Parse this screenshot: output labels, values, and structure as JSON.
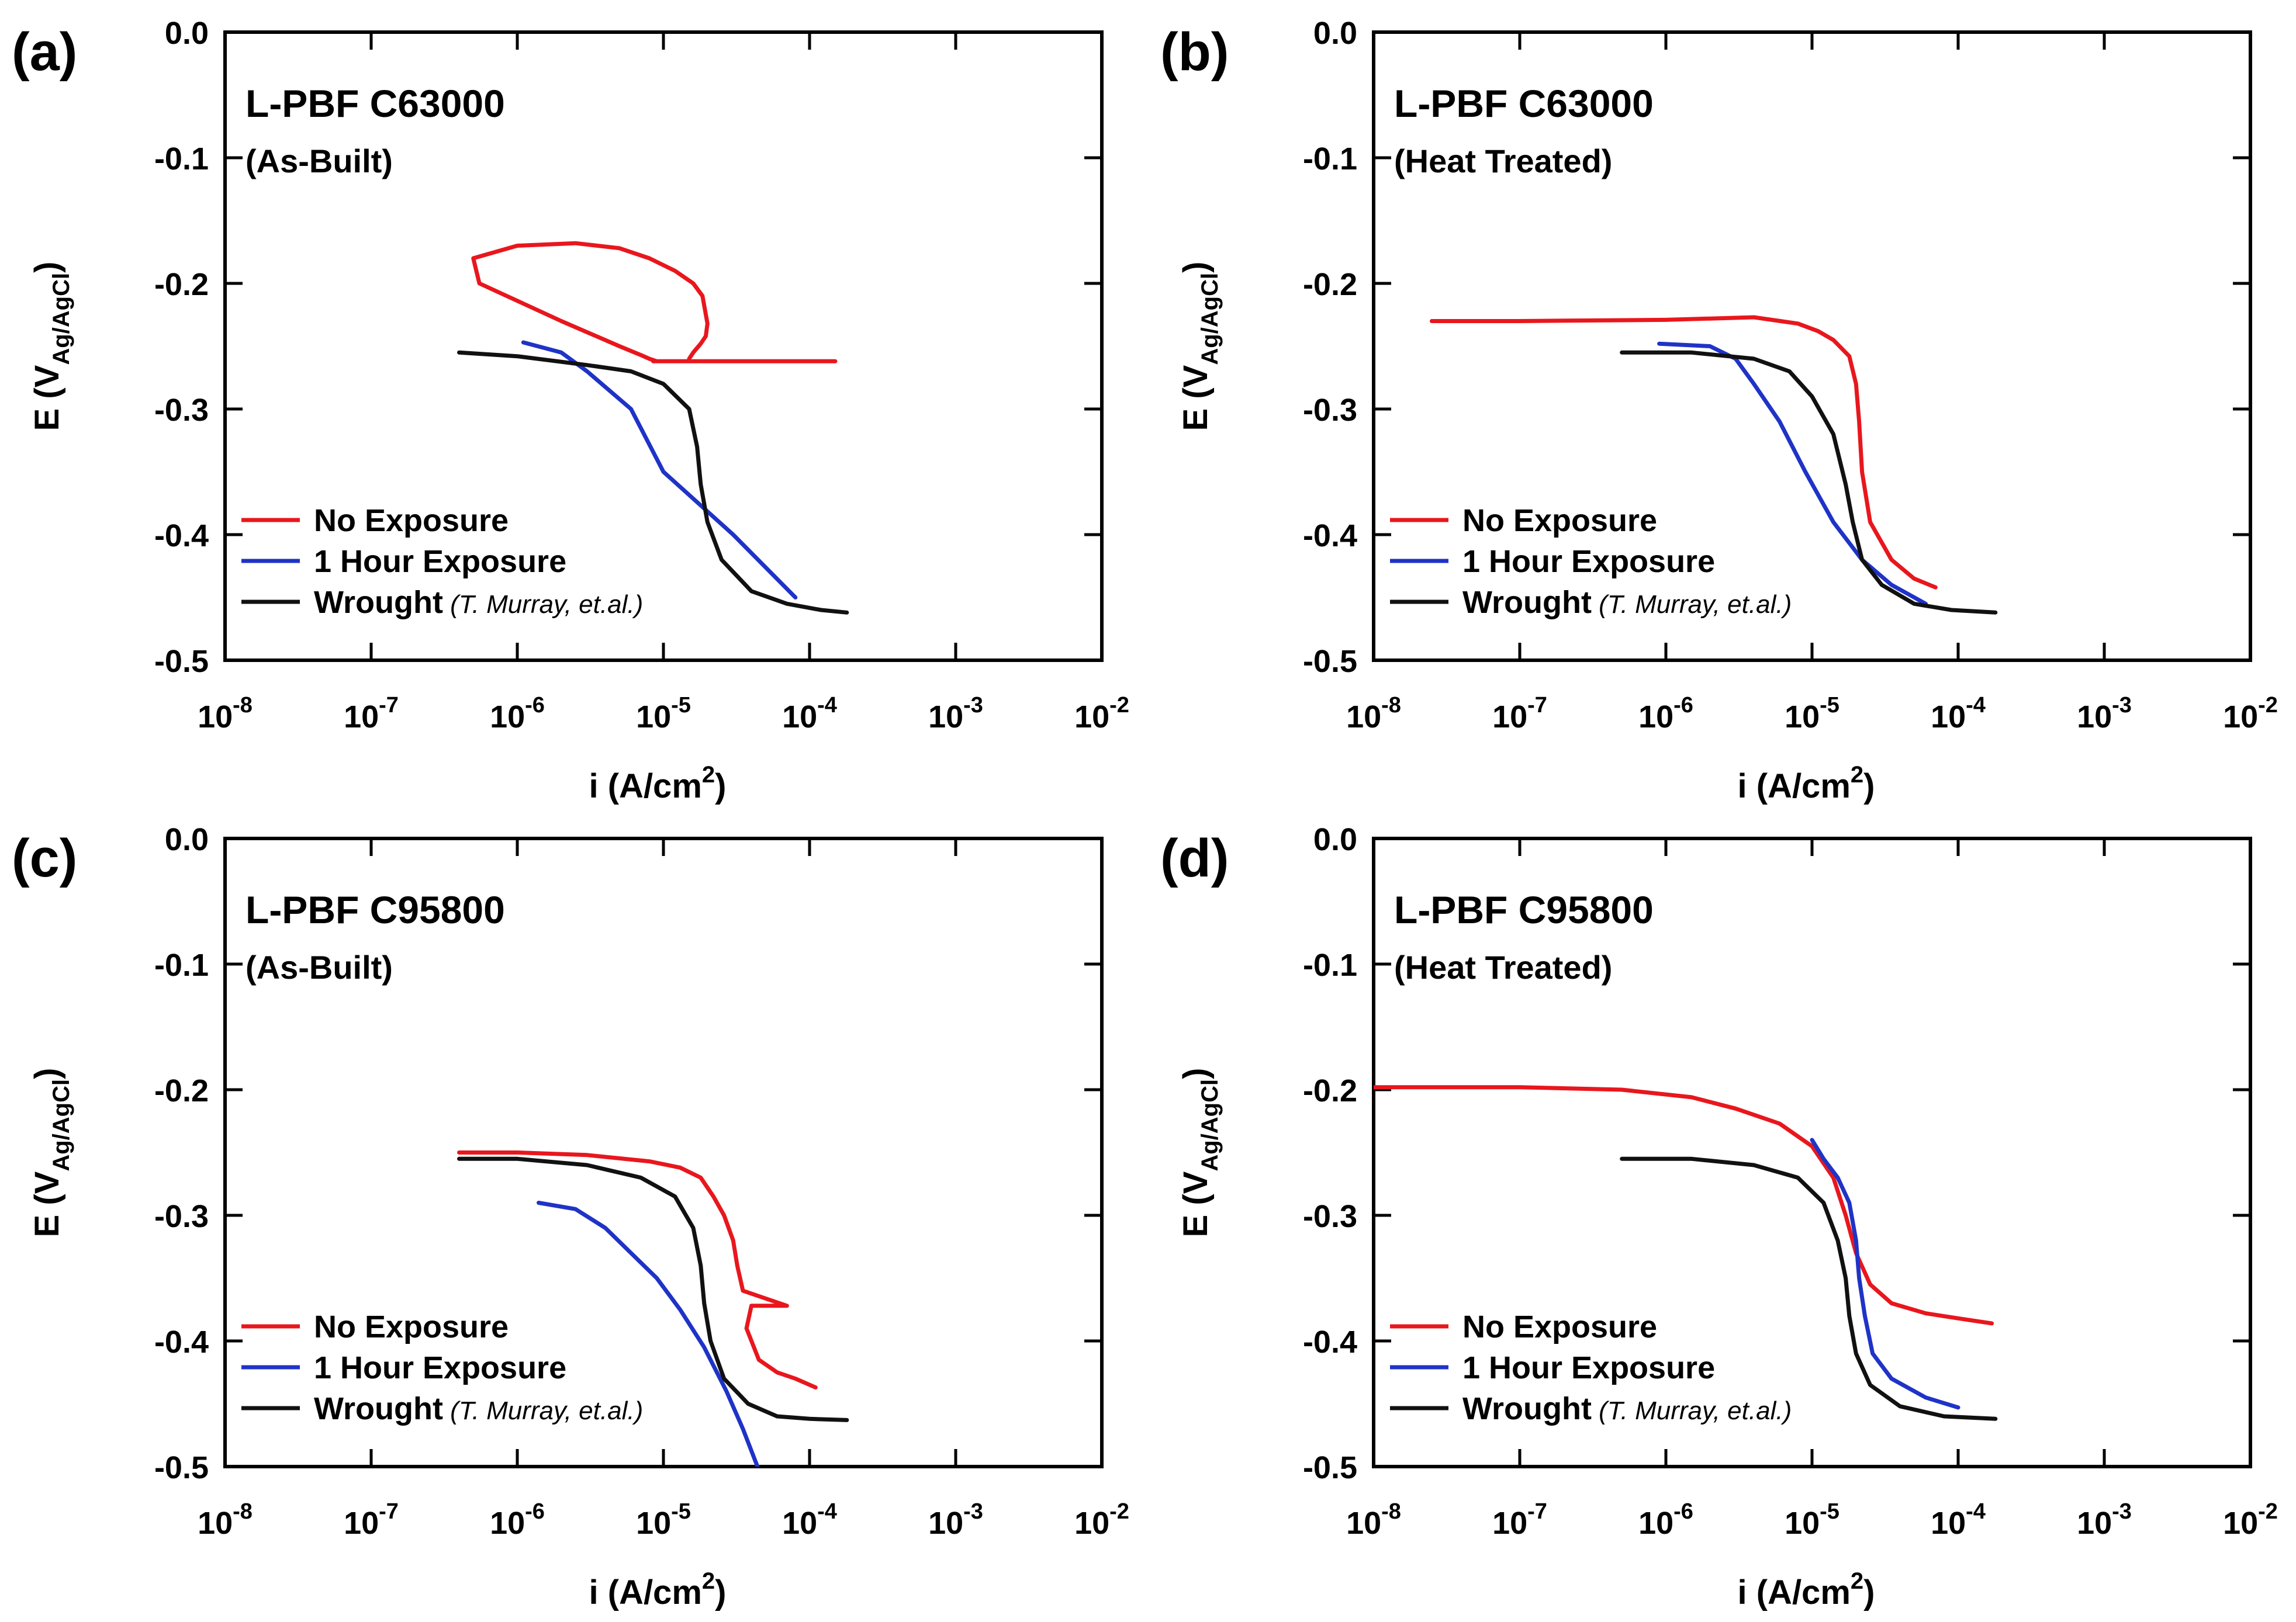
{
  "chart_data": [
    {
      "panel_label": "(a)",
      "type": "line",
      "title": "L-PBF C63000",
      "subtitle": "(As-Built)",
      "xlabel": "i (A/cm",
      "xlabel_sup": "2",
      "xlabel_end": ")",
      "ylabel": "E (V",
      "ylabel_sub": "Ag/AgCl",
      "ylabel_end": ")",
      "xscale": "log",
      "xlim": [
        1e-08,
        0.01
      ],
      "ylim": [
        -0.5,
        0.0
      ],
      "xticks": [
        {
          "base": "10",
          "exp": "-8"
        },
        {
          "base": "10",
          "exp": "-7"
        },
        {
          "base": "10",
          "exp": "-6"
        },
        {
          "base": "10",
          "exp": "-5"
        },
        {
          "base": "10",
          "exp": "-4"
        },
        {
          "base": "10",
          "exp": "-3"
        },
        {
          "base": "10",
          "exp": "-2"
        }
      ],
      "yticks": [
        "0.0",
        "-0.1",
        "-0.2",
        "-0.3",
        "-0.4",
        "-0.5"
      ],
      "grid": false,
      "legend_position": "bottom-left",
      "series": [
        {
          "name": "No Exposure",
          "color": "#e8171d",
          "x": [
            1.5e-05,
            1.6e-05,
            1.8e-05,
            1.95e-05,
            2e-05,
            1.85e-05,
            1.6e-05,
            1.2e-05,
            8e-06,
            5e-06,
            2.5e-06,
            1e-06,
            5e-07,
            5.5e-07,
            2e-06,
            5e-06,
            7e-06,
            8e-06,
            9e-06,
            8.5e-06,
            1.2e-05,
            1.7e-05,
            3e-05,
            6e-05,
            0.00015
          ],
          "y": [
            -0.26,
            -0.255,
            -0.248,
            -0.242,
            -0.232,
            -0.21,
            -0.2,
            -0.19,
            -0.18,
            -0.172,
            -0.168,
            -0.17,
            -0.18,
            -0.2,
            -0.23,
            -0.25,
            -0.257,
            -0.26,
            -0.262,
            -0.262,
            -0.262,
            -0.262,
            -0.262,
            -0.262,
            -0.262
          ]
        },
        {
          "name": "1 Hour Exposure",
          "color": "#1f33c7",
          "x": [
            8e-05,
            3e-05,
            1e-05,
            6e-06,
            3e-06,
            2e-06,
            1.1e-06
          ],
          "y": [
            -0.45,
            -0.4,
            -0.35,
            -0.3,
            -0.27,
            -0.255,
            -0.247
          ]
        },
        {
          "name": "Wrought",
          "color": "#111111",
          "x": [
            4e-07,
            1e-06,
            3e-06,
            6e-06,
            1e-05,
            1.5e-05,
            1.7e-05,
            1.8e-05,
            2e-05,
            2.5e-05,
            4e-05,
            7e-05,
            0.00012,
            0.00018
          ],
          "y": [
            -0.255,
            -0.258,
            -0.265,
            -0.27,
            -0.28,
            -0.3,
            -0.33,
            -0.36,
            -0.39,
            -0.42,
            -0.445,
            -0.455,
            -0.46,
            -0.462
          ]
        }
      ],
      "legend": [
        {
          "label": "No Exposure",
          "note": "",
          "color": "#e8171d"
        },
        {
          "label": "1 Hour Exposure",
          "note": "",
          "color": "#1f33c7"
        },
        {
          "label": "Wrought",
          "note": "(T. Murray, et.al.)",
          "color": "#111111"
        }
      ]
    },
    {
      "panel_label": "(b)",
      "type": "line",
      "title": "L-PBF C63000",
      "subtitle": "(Heat Treated)",
      "xlabel": "i (A/cm",
      "xlabel_sup": "2",
      "xlabel_end": ")",
      "ylabel": "E (V",
      "ylabel_sub": "Ag/AgCl",
      "ylabel_end": ")",
      "xscale": "log",
      "xlim": [
        1e-08,
        0.01
      ],
      "ylim": [
        -0.5,
        0.0
      ],
      "xticks": [
        {
          "base": "10",
          "exp": "-8"
        },
        {
          "base": "10",
          "exp": "-7"
        },
        {
          "base": "10",
          "exp": "-6"
        },
        {
          "base": "10",
          "exp": "-5"
        },
        {
          "base": "10",
          "exp": "-4"
        },
        {
          "base": "10",
          "exp": "-3"
        },
        {
          "base": "10",
          "exp": "-2"
        }
      ],
      "yticks": [
        "0.0",
        "-0.1",
        "-0.2",
        "-0.3",
        "-0.4",
        "-0.5"
      ],
      "grid": false,
      "legend_position": "bottom-left",
      "series": [
        {
          "name": "No Exposure",
          "color": "#e8171d",
          "x": [
            2.5e-08,
            1e-07,
            1e-06,
            4e-06,
            8e-06,
            1.1e-05,
            1.4e-05,
            1.8e-05,
            2e-05,
            2.1e-05,
            2.2e-05,
            2.5e-05,
            3.5e-05,
            5e-05,
            7e-05
          ],
          "y": [
            -0.23,
            -0.23,
            -0.229,
            -0.227,
            -0.232,
            -0.238,
            -0.245,
            -0.258,
            -0.28,
            -0.31,
            -0.35,
            -0.39,
            -0.42,
            -0.435,
            -0.442
          ]
        },
        {
          "name": "1 Hour Exposure",
          "color": "#1f33c7",
          "x": [
            9e-07,
            2e-06,
            3e-06,
            4e-06,
            6e-06,
            9e-06,
            1.4e-05,
            2.2e-05,
            3.5e-05,
            6e-05
          ],
          "y": [
            -0.248,
            -0.25,
            -0.26,
            -0.28,
            -0.31,
            -0.35,
            -0.39,
            -0.42,
            -0.44,
            -0.455
          ]
        },
        {
          "name": "Wrought",
          "color": "#111111",
          "x": [
            5e-07,
            1.5e-06,
            4e-06,
            7e-06,
            1e-05,
            1.4e-05,
            1.7e-05,
            1.9e-05,
            2.2e-05,
            3e-05,
            5e-05,
            9e-05,
            0.00018
          ],
          "y": [
            -0.255,
            -0.255,
            -0.26,
            -0.27,
            -0.29,
            -0.32,
            -0.36,
            -0.39,
            -0.42,
            -0.44,
            -0.455,
            -0.46,
            -0.462
          ]
        }
      ],
      "legend": [
        {
          "label": "No Exposure",
          "note": "",
          "color": "#e8171d"
        },
        {
          "label": "1 Hour Exposure",
          "note": "",
          "color": "#1f33c7"
        },
        {
          "label": "Wrought",
          "note": "(T. Murray, et.al.)",
          "color": "#111111"
        }
      ]
    },
    {
      "panel_label": "(c)",
      "type": "line",
      "title": "L-PBF C95800",
      "subtitle": "(As-Built)",
      "xlabel": "i (A/cm",
      "xlabel_sup": "2",
      "xlabel_end": ")",
      "ylabel": "E (V",
      "ylabel_sub": "Ag/AgCl",
      "ylabel_end": ")",
      "xscale": "log",
      "xlim": [
        1e-08,
        0.01
      ],
      "ylim": [
        -0.5,
        0.0
      ],
      "xticks": [
        {
          "base": "10",
          "exp": "-8"
        },
        {
          "base": "10",
          "exp": "-7"
        },
        {
          "base": "10",
          "exp": "-6"
        },
        {
          "base": "10",
          "exp": "-5"
        },
        {
          "base": "10",
          "exp": "-4"
        },
        {
          "base": "10",
          "exp": "-3"
        },
        {
          "base": "10",
          "exp": "-2"
        }
      ],
      "yticks": [
        "0.0",
        "-0.1",
        "-0.2",
        "-0.3",
        "-0.4",
        "-0.5"
      ],
      "grid": false,
      "legend_position": "bottom-left",
      "series": [
        {
          "name": "No Exposure",
          "color": "#e8171d",
          "x": [
            4e-07,
            1e-06,
            3e-06,
            8e-06,
            1.3e-05,
            1.8e-05,
            2.2e-05,
            2.6e-05,
            3e-05,
            3.2e-05,
            3.5e-05,
            7e-05,
            4e-05,
            3.7e-05,
            4.5e-05,
            6e-05,
            8e-05,
            0.00011
          ],
          "y": [
            -0.25,
            -0.25,
            -0.252,
            -0.257,
            -0.262,
            -0.27,
            -0.285,
            -0.3,
            -0.32,
            -0.34,
            -0.36,
            -0.372,
            -0.372,
            -0.39,
            -0.415,
            -0.425,
            -0.43,
            -0.437
          ]
        },
        {
          "name": "1 Hour Exposure",
          "color": "#1f33c7",
          "x": [
            1.4e-06,
            2.5e-06,
            4e-06,
            6e-06,
            9e-06,
            1.3e-05,
            1.9e-05,
            2.7e-05,
            3.5e-05,
            4.4e-05
          ],
          "y": [
            -0.29,
            -0.295,
            -0.31,
            -0.33,
            -0.35,
            -0.375,
            -0.405,
            -0.44,
            -0.47,
            -0.5
          ]
        },
        {
          "name": "Wrought",
          "color": "#111111",
          "x": [
            4e-07,
            1e-06,
            3e-06,
            7e-06,
            1.2e-05,
            1.6e-05,
            1.8e-05,
            1.9e-05,
            2.1e-05,
            2.6e-05,
            3.8e-05,
            6e-05,
            0.0001,
            0.00018
          ],
          "y": [
            -0.255,
            -0.255,
            -0.26,
            -0.27,
            -0.285,
            -0.31,
            -0.34,
            -0.37,
            -0.4,
            -0.43,
            -0.45,
            -0.46,
            -0.462,
            -0.463
          ]
        }
      ],
      "legend": [
        {
          "label": "No Exposure",
          "note": "",
          "color": "#e8171d"
        },
        {
          "label": "1 Hour Exposure",
          "note": "",
          "color": "#1f33c7"
        },
        {
          "label": "Wrought",
          "note": "(T. Murray, et.al.)",
          "color": "#111111"
        }
      ]
    },
    {
      "panel_label": "(d)",
      "type": "line",
      "title": "L-PBF C95800",
      "subtitle": "(Heat Treated)",
      "xlabel": "i (A/cm",
      "xlabel_sup": "2",
      "xlabel_end": ")",
      "ylabel": "E (V",
      "ylabel_sub": "Ag/AgCl",
      "ylabel_end": ")",
      "xscale": "log",
      "xlim": [
        1e-08,
        0.01
      ],
      "ylim": [
        -0.5,
        0.0
      ],
      "xticks": [
        {
          "base": "10",
          "exp": "-8"
        },
        {
          "base": "10",
          "exp": "-7"
        },
        {
          "base": "10",
          "exp": "-6"
        },
        {
          "base": "10",
          "exp": "-5"
        },
        {
          "base": "10",
          "exp": "-4"
        },
        {
          "base": "10",
          "exp": "-3"
        },
        {
          "base": "10",
          "exp": "-2"
        }
      ],
      "yticks": [
        "0.0",
        "-0.1",
        "-0.2",
        "-0.3",
        "-0.4",
        "-0.5"
      ],
      "grid": false,
      "legend_position": "bottom-left",
      "series": [
        {
          "name": "No Exposure",
          "color": "#e8171d",
          "x": [
            1e-08,
            1e-07,
            5e-07,
            1.5e-06,
            3e-06,
            6e-06,
            1e-05,
            1.4e-05,
            1.7e-05,
            2e-05,
            2.5e-05,
            3.5e-05,
            6e-05,
            0.0001,
            0.00017
          ],
          "y": [
            -0.198,
            -0.198,
            -0.2,
            -0.206,
            -0.215,
            -0.227,
            -0.245,
            -0.27,
            -0.3,
            -0.33,
            -0.355,
            -0.37,
            -0.378,
            -0.382,
            -0.386
          ]
        },
        {
          "name": "1 Hour Exposure",
          "color": "#1f33c7",
          "x": [
            1e-05,
            1.2e-05,
            1.5e-05,
            1.8e-05,
            2e-05,
            2.1e-05,
            2.3e-05,
            2.6e-05,
            3.5e-05,
            6e-05,
            0.0001
          ],
          "y": [
            -0.24,
            -0.255,
            -0.27,
            -0.29,
            -0.32,
            -0.35,
            -0.38,
            -0.41,
            -0.43,
            -0.445,
            -0.453
          ]
        },
        {
          "name": "Wrought",
          "color": "#111111",
          "x": [
            5e-07,
            1.5e-06,
            4e-06,
            8e-06,
            1.2e-05,
            1.5e-05,
            1.7e-05,
            1.8e-05,
            2e-05,
            2.5e-05,
            4e-05,
            8e-05,
            0.00018
          ],
          "y": [
            -0.255,
            -0.255,
            -0.26,
            -0.27,
            -0.29,
            -0.32,
            -0.35,
            -0.38,
            -0.41,
            -0.435,
            -0.452,
            -0.46,
            -0.462
          ]
        }
      ],
      "legend": [
        {
          "label": "No Exposure",
          "note": "",
          "color": "#e8171d"
        },
        {
          "label": "1 Hour Exposure",
          "note": "",
          "color": "#1f33c7"
        },
        {
          "label": "Wrought",
          "note": "(T. Murray, et.al.)",
          "color": "#111111"
        }
      ]
    }
  ]
}
